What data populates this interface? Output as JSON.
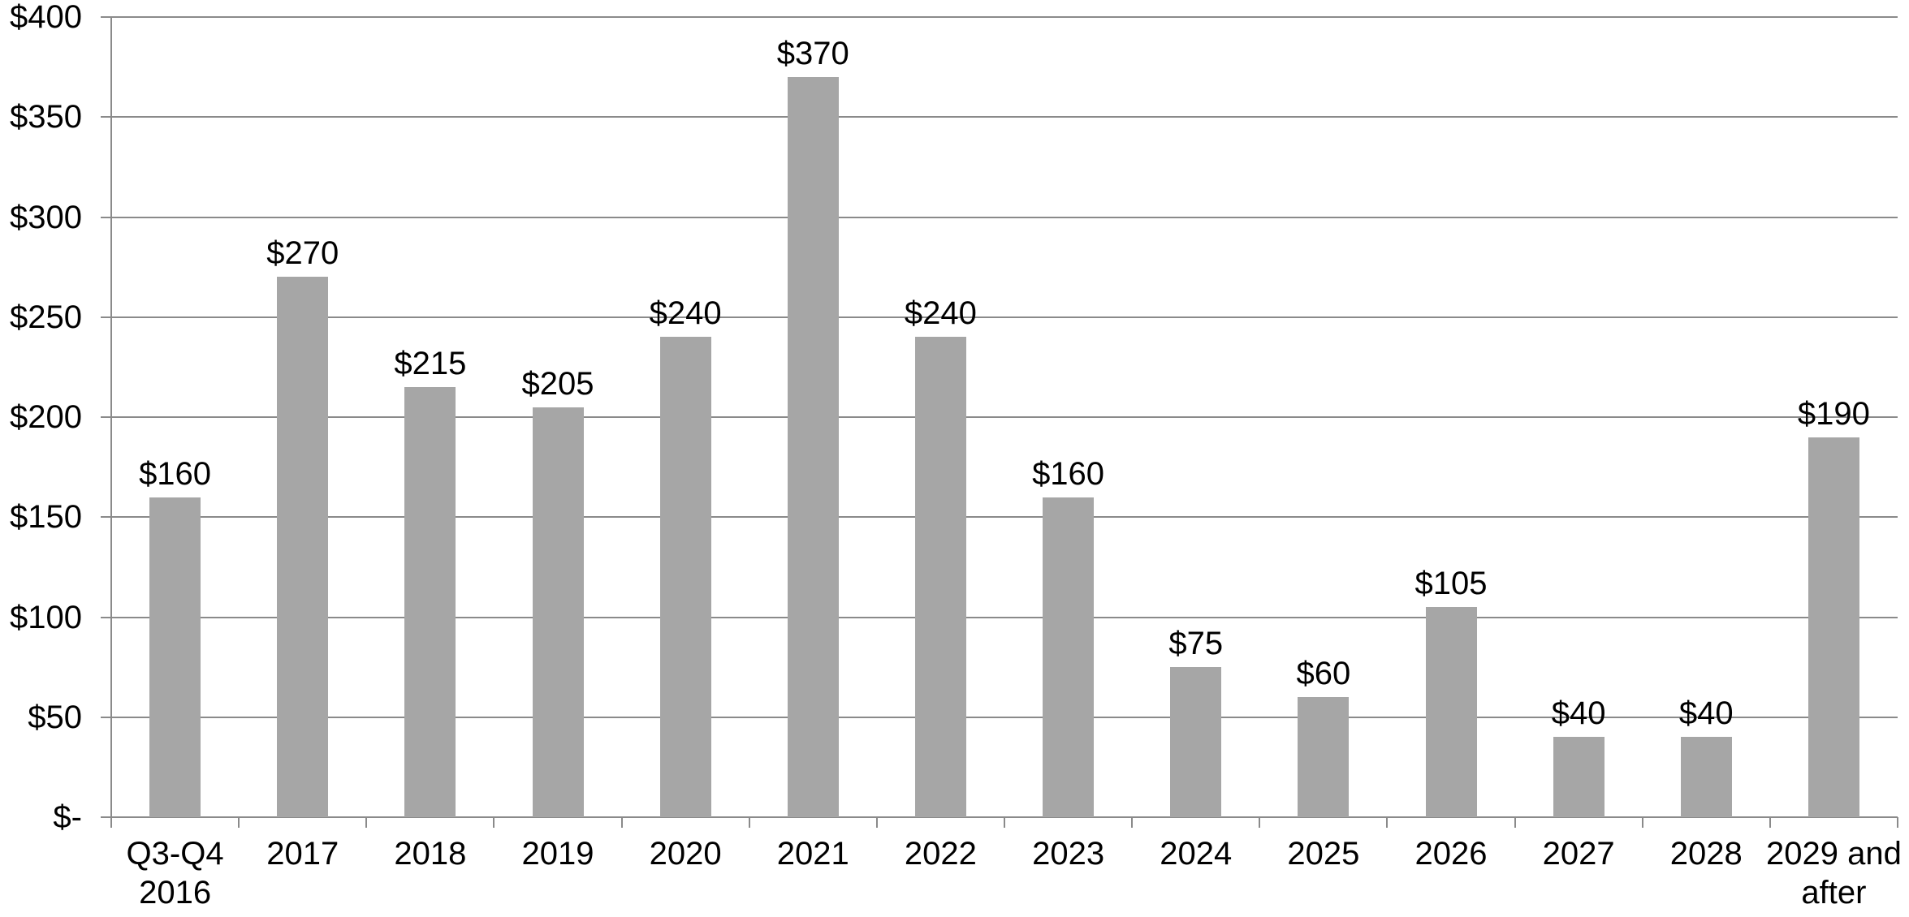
{
  "chart_data": {
    "type": "bar",
    "title": "",
    "xlabel": "",
    "ylabel": "",
    "categories": [
      "Q3-Q4\n2016",
      "2017",
      "2018",
      "2019",
      "2020",
      "2021",
      "2022",
      "2023",
      "2024",
      "2025",
      "2026",
      "2027",
      "2028",
      "2029 and\nafter"
    ],
    "values": [
      160,
      270,
      215,
      205,
      240,
      370,
      240,
      160,
      75,
      60,
      105,
      40,
      40,
      190
    ],
    "data_labels": [
      "$160",
      "$270",
      "$215",
      "$205",
      "$240",
      "$370",
      "$240",
      "$160",
      "$75",
      "$60",
      "$105",
      "$40",
      "$40",
      "$190"
    ],
    "y_tick_labels": [
      "$-",
      "$50",
      "$100",
      "$150",
      "$200",
      "$250",
      "$300",
      "$350",
      "$400"
    ],
    "y_tick_values": [
      0,
      50,
      100,
      150,
      200,
      250,
      300,
      350,
      400
    ],
    "ylim": [
      0,
      400
    ],
    "grid": "horizontal",
    "legend": "none",
    "bar_color": "#a6a6a6",
    "axis_color": "#8a8a8a",
    "text_color": "#000000",
    "background_color": "#ffffff"
  }
}
